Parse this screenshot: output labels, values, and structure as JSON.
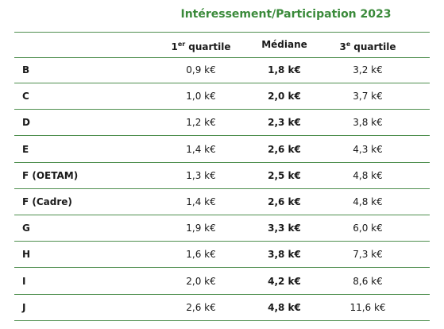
{
  "title": "Intéressement/Participation 2023",
  "table": {
    "headers": [
      {
        "base": "1",
        "sup": "er",
        "text": "quartile"
      },
      {
        "base": "Médiane"
      },
      {
        "base": "3",
        "sup": "e",
        "text": "quartile"
      }
    ],
    "rows": [
      [
        "B",
        "0,9 k€",
        "1,8 k€",
        "3,2 k€"
      ],
      [
        "C",
        "1,0 k€",
        "2,0 k€",
        "3,7 k€"
      ],
      [
        "D",
        "1,2 k€",
        "2,3 k€",
        "3,8 k€"
      ],
      [
        "E",
        "1,4 k€",
        "2,6 k€",
        "4,3 k€"
      ],
      [
        "F (OETAM)",
        "1,3 k€",
        "2,5 k€",
        "4,8 k€"
      ],
      [
        "F (Cadre)",
        "1,4 k€",
        "2,6 k€",
        "4,8 k€"
      ],
      [
        "G",
        "1,9 k€",
        "3,3 k€",
        "6,0 k€"
      ],
      [
        "H",
        "1,6 k€",
        "3,8 k€",
        "7,3 k€"
      ],
      [
        "I",
        "2,0 k€",
        "4,2 k€",
        "8,6 k€"
      ],
      [
        "J",
        "2,6 k€",
        "4,8 k€",
        "11,6 k€"
      ]
    ]
  }
}
